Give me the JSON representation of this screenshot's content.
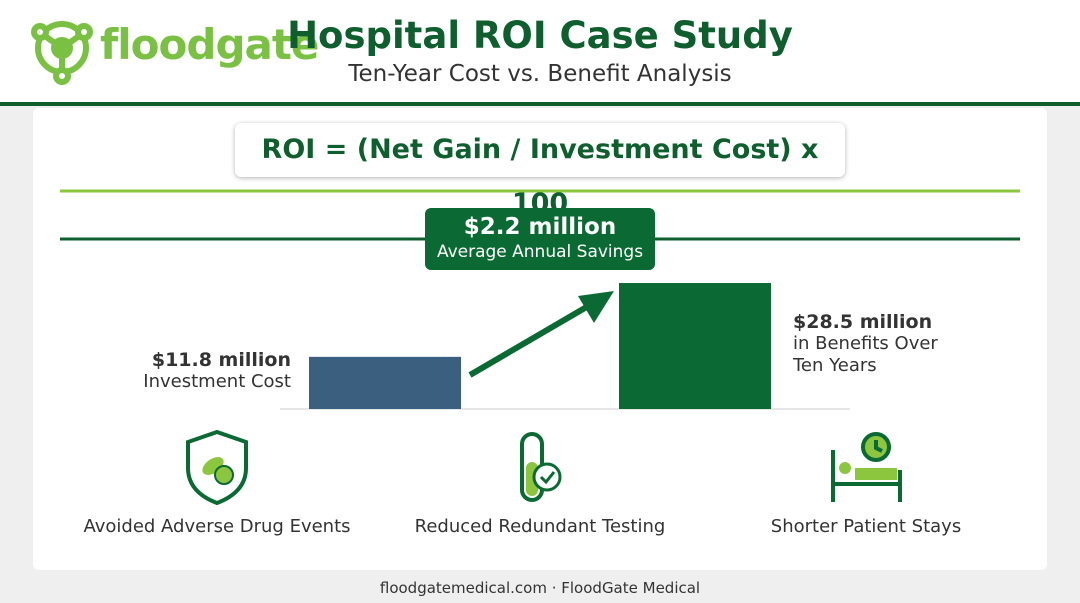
{
  "header": {
    "brand": "floodgate",
    "title": "Hospital ROI Case Study",
    "subtitle": "Ten-Year Cost vs. Benefit Analysis"
  },
  "formula": "ROI = (Net Gain / Investment Cost) x 100",
  "highlight": {
    "value": "$2.2 million",
    "label": "Average Annual Savings"
  },
  "chart_data": {
    "type": "bar",
    "categories": [
      "Investment Cost",
      "in Benefits Over Ten Years"
    ],
    "values": [
      11.8,
      28.5
    ],
    "value_labels": [
      "$11.8 million",
      "$28.5 million"
    ],
    "colors": [
      "#3b5f7f",
      "#0b6a34"
    ]
  },
  "benefits": [
    "Avoided Adverse Drug Events",
    "Reduced Redundant Testing",
    "Shorter Patient Stays"
  ],
  "footer": "floodgatemedical.com · FloodGate Medical"
}
